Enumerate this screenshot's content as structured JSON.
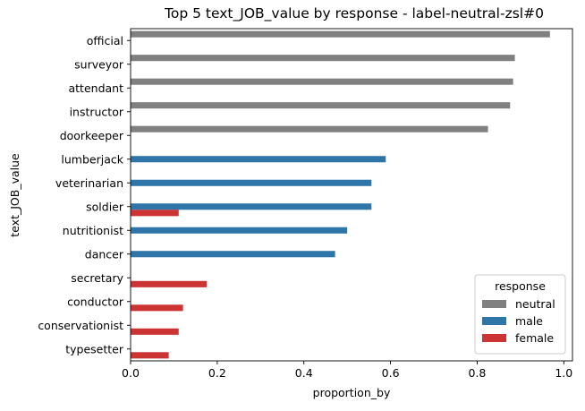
{
  "chart_data": {
    "type": "bar",
    "orientation": "horizontal",
    "title": "Top 5 text_JOB_value by response - label-neutral-zsl#0",
    "xlabel": "proportion_by",
    "ylabel": "text_JOB_value",
    "xlim": [
      0,
      1.02
    ],
    "xticks": [
      "0.0",
      "0.2",
      "0.4",
      "0.6",
      "0.8",
      "1.0"
    ],
    "xtick_values": [
      0,
      0.2,
      0.4,
      0.6,
      0.8,
      1.0
    ],
    "grid": false,
    "categories": [
      "official",
      "surveyor",
      "attendant",
      "instructor",
      "doorkeeper",
      "lumberjack",
      "veterinarian",
      "soldier",
      "nutritionist",
      "dancer",
      "secretary",
      "conductor",
      "conservationist",
      "typesetter"
    ],
    "series": [
      {
        "name": "neutral",
        "color": "#808080",
        "values": [
          0.968,
          0.887,
          0.883,
          0.876,
          0.825,
          null,
          null,
          null,
          null,
          null,
          null,
          null,
          null,
          null
        ]
      },
      {
        "name": "male",
        "color": "#2e75a8",
        "values": [
          null,
          null,
          null,
          null,
          null,
          0.589,
          0.556,
          0.556,
          0.5,
          0.472,
          null,
          null,
          null,
          null
        ]
      },
      {
        "name": "female",
        "color": "#cc3333",
        "values": [
          null,
          null,
          null,
          null,
          null,
          null,
          null,
          0.111,
          null,
          null,
          0.176,
          0.121,
          0.111,
          0.088
        ]
      }
    ],
    "legend": {
      "title": "response",
      "placement": "lower-right"
    }
  }
}
